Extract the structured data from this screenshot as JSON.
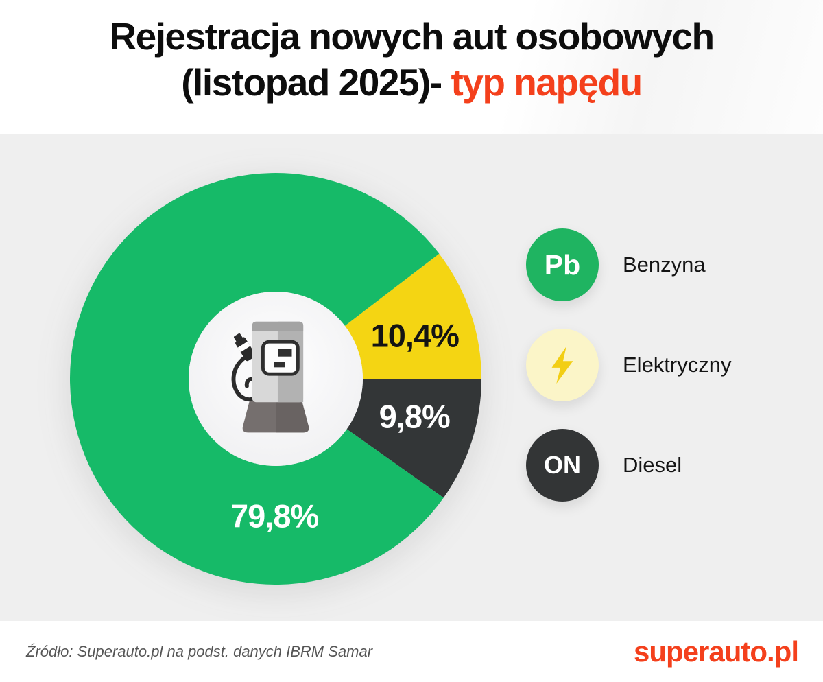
{
  "header": {
    "title_line1": "Rejestracja nowych aut osobowych",
    "title_line2_black": "(listopad 2025)- ",
    "title_line2_accent": "typ napędu",
    "accent_color": "#f4401c"
  },
  "chart_data": {
    "type": "pie",
    "title": "Rejestracja nowych aut osobowych (listopad 2025) - typ napędu",
    "donut": true,
    "start_angle_deg": 52.6,
    "direction": "clockwise",
    "outer_radius_px": 300,
    "inner_radius_px": 127,
    "legend_position": "right",
    "center_icon": "ev-charging-pump-icon",
    "slices": [
      {
        "label": "Elektryczny",
        "value_pct": 10.4,
        "display": "10,4%",
        "color": "#f4d513",
        "text_color": "#141414",
        "label_at": {
          "x": 0.838,
          "y": 0.395
        }
      },
      {
        "label": "Diesel",
        "value_pct": 9.8,
        "display": "9,8%",
        "color": "#333637",
        "text_color": "#ffffff",
        "label_at": {
          "x": 0.837,
          "y": 0.592
        }
      },
      {
        "label": "Benzyna",
        "value_pct": 79.8,
        "display": "79,8%",
        "color": "#16ba68",
        "text_color": "#ffffff",
        "label_at": {
          "x": 0.497,
          "y": 0.833
        }
      }
    ]
  },
  "legend": {
    "items": [
      {
        "label": "Benzyna",
        "badge_text": "Pb",
        "badge_icon": "pb-badge-icon",
        "badge_bg": "#1fb461",
        "badge_fg": "#ffffff"
      },
      {
        "label": "Elektryczny",
        "badge_text": "",
        "badge_icon": "lightning-bolt-icon",
        "badge_bg": "#fbf5c8",
        "badge_fg": "#f2ce14"
      },
      {
        "label": "Diesel",
        "badge_text": "ON",
        "badge_icon": "on-badge-icon",
        "badge_bg": "#333536",
        "badge_fg": "#ffffff"
      }
    ]
  },
  "footer": {
    "source": "Źródło: Superauto.pl na podst. danych IBRM Samar",
    "logo": "superauto.pl",
    "logo_color": "#f4401c"
  }
}
